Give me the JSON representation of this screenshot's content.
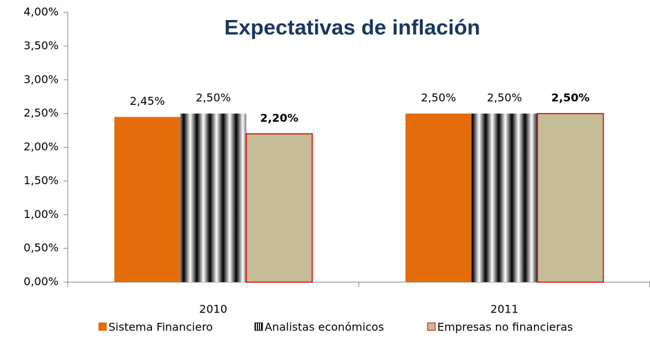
{
  "chart_data": {
    "type": "bar",
    "title": "Expectativas de inflación",
    "categories": [
      "2010",
      "2011"
    ],
    "series": [
      {
        "name": "Sistema Financiero",
        "color": "#e46c0a",
        "values": [
          2.45,
          2.5
        ],
        "value_labels": [
          "2,45%",
          "2,50%"
        ],
        "label_color": "#999900"
      },
      {
        "name": "Analistas económicos",
        "color": "#000000",
        "pattern": "stripes",
        "values": [
          2.5,
          2.5
        ],
        "value_labels": [
          "2,50%",
          "2,50%"
        ],
        "label_color": "#000000"
      },
      {
        "name": "Empresas no financieras",
        "color": "#c4bd97",
        "border_color": "#e00000",
        "values": [
          2.2,
          2.5
        ],
        "value_labels": [
          "2,20%",
          "2,50%"
        ],
        "label_color": "#993366",
        "label_bold": true
      }
    ],
    "ylim": [
      0,
      4
    ],
    "yticks": [
      {
        "value": 0,
        "label": "0,00%"
      },
      {
        "value": 0.5,
        "label": "0,50%"
      },
      {
        "value": 1,
        "label": "1,00%"
      },
      {
        "value": 1.5,
        "label": "1,50%"
      },
      {
        "value": 2,
        "label": "2,00%"
      },
      {
        "value": 2.5,
        "label": "2,50%"
      },
      {
        "value": 3,
        "label": "3,00%"
      },
      {
        "value": 3.5,
        "label": "3,50%"
      },
      {
        "value": 4,
        "label": "4,00%"
      }
    ],
    "grid": false,
    "legend": "bottom"
  }
}
